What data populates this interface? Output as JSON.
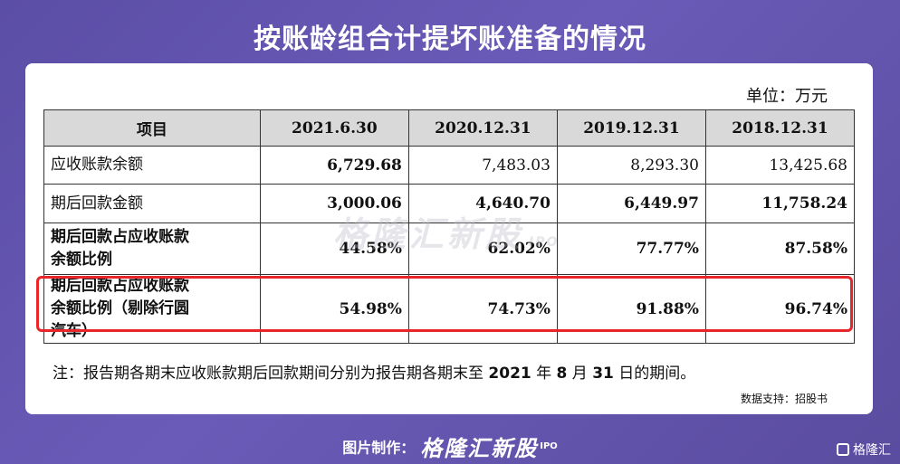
{
  "title": "按账龄组合计提坏账准备的情况",
  "unit": "单位：万元",
  "table": {
    "headers": [
      "项目",
      "2021.6.30",
      "2020.12.31",
      "2019.12.31",
      "2018.12.31"
    ],
    "rows": [
      {
        "label": "应收账款余额",
        "values": [
          "6,729.68",
          "7,483.03",
          "8,293.30",
          "13,425.68"
        ]
      },
      {
        "label": "期后回款金额",
        "values": [
          "3,000.06",
          "4,640.70",
          "6,449.97",
          "11,758.24"
        ]
      },
      {
        "label_line1": "期后回款占应收账款",
        "label_line2": "余额比例",
        "values": [
          "44.58%",
          "62.02%",
          "77.77%",
          "87.58%"
        ]
      },
      {
        "label_line1": "期后回款占应收账款",
        "label_line2": "余额比例（剔除行圆",
        "label_line3": "汽车）",
        "values": [
          "54.98%",
          "74.73%",
          "91.88%",
          "96.74%"
        ]
      }
    ]
  },
  "note": {
    "text1": "注：报告期各期末应收账款期后回款期间分别为报告期各期末至 ",
    "year": "2021",
    "text2": " 年 ",
    "month": "8",
    "text3": " 月 ",
    "day": "31",
    "text4": " 日的期间。"
  },
  "source": "数据支持：招股书",
  "watermark": {
    "brand": "格隆汇新股",
    "tag": "IPO"
  },
  "footer": {
    "made_by": "图片制作：",
    "brand": "格隆汇新股",
    "tag": "IPO"
  },
  "corner_logo": "格隆汇",
  "colors": {
    "highlight": "#e8262a",
    "header_bg": "#d9d9d9",
    "background": "#5b4ea6"
  }
}
